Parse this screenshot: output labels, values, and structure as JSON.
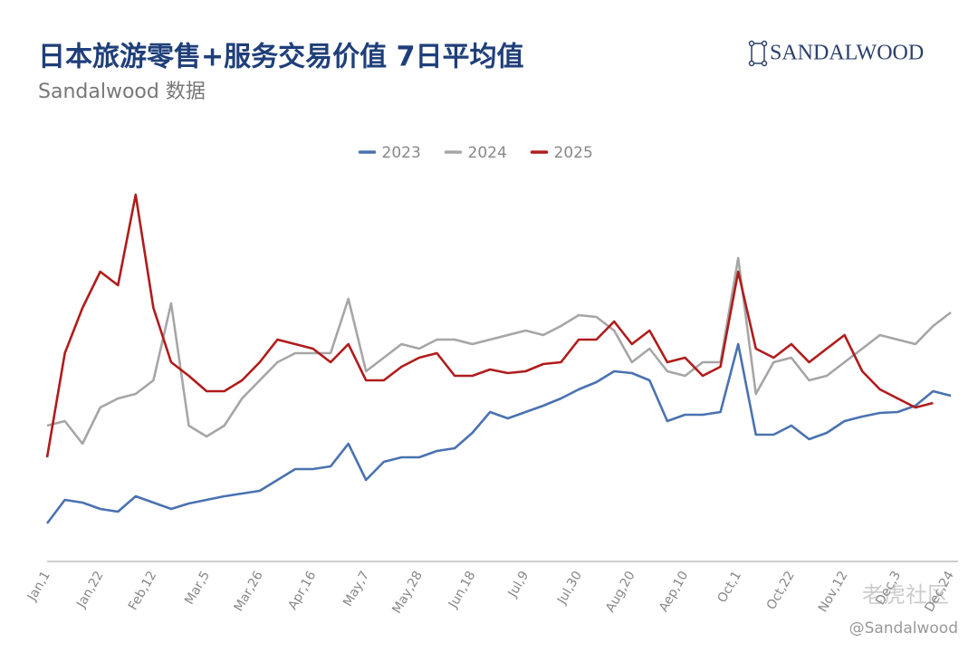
{
  "header": {
    "title": "日本旅游零售+服务交易价值 7日平均值",
    "subtitle": "Sandalwood 数据",
    "logo": "SANDALWOOD"
  },
  "watermark": {
    "community": "老虎社区",
    "handle": "@Sandalwood"
  },
  "chart_data": {
    "type": "line",
    "categories": [
      "Jan,1",
      null,
      null,
      "Jan,22",
      null,
      null,
      "Feb,12",
      null,
      null,
      "Mar,5",
      null,
      null,
      "Mar,26",
      null,
      null,
      "Apr,16",
      null,
      null,
      "May,7",
      null,
      null,
      "May,28",
      null,
      null,
      "Jun,18",
      null,
      null,
      "Jul,9",
      null,
      null,
      "Jul,30",
      null,
      null,
      "Aug,20",
      null,
      null,
      "Aep,10",
      null,
      null,
      "Oct,1",
      null,
      null,
      "Oct,22",
      null,
      null,
      "Nov,12",
      null,
      null,
      "Dec,3",
      null,
      null,
      "Dec,24"
    ],
    "series": [
      {
        "name": "2023",
        "color": "#4a72b0",
        "values": [
          42,
          68,
          65,
          58,
          55,
          72,
          65,
          58,
          64,
          68,
          72,
          75,
          78,
          90,
          102,
          102,
          105,
          130,
          90,
          110,
          115,
          115,
          122,
          125,
          142,
          165,
          158,
          165,
          172,
          180,
          190,
          198,
          210,
          208,
          200,
          155,
          162,
          162,
          165,
          240,
          140,
          140,
          150,
          135,
          142,
          155,
          160,
          164,
          165,
          172,
          188,
          183
        ]
      },
      {
        "name": "2024",
        "color": "#a6a6a6",
        "values": [
          150,
          155,
          130,
          170,
          180,
          185,
          200,
          285,
          150,
          138,
          150,
          180,
          200,
          220,
          230,
          230,
          230,
          290,
          210,
          225,
          240,
          235,
          245,
          245,
          240,
          245,
          250,
          255,
          250,
          260,
          272,
          270,
          255,
          220,
          235,
          210,
          205,
          220,
          220,
          335,
          185,
          220,
          225,
          200,
          205,
          220,
          235,
          250,
          245,
          240,
          260,
          275
        ]
      },
      {
        "name": "2025",
        "color": "#b01c1c",
        "values": [
          115,
          230,
          280,
          320,
          305,
          405,
          280,
          220,
          205,
          188,
          188,
          200,
          220,
          245,
          240,
          235,
          220,
          240,
          200,
          200,
          215,
          225,
          230,
          205,
          205,
          212,
          208,
          210,
          218,
          220,
          245,
          245,
          265,
          240,
          255,
          220,
          225,
          205,
          215,
          320,
          235,
          225,
          240,
          220,
          235,
          250,
          210,
          190,
          180,
          170,
          175,
          null
        ]
      }
    ],
    "ylim": [
      0,
      420
    ],
    "legend": "top"
  }
}
